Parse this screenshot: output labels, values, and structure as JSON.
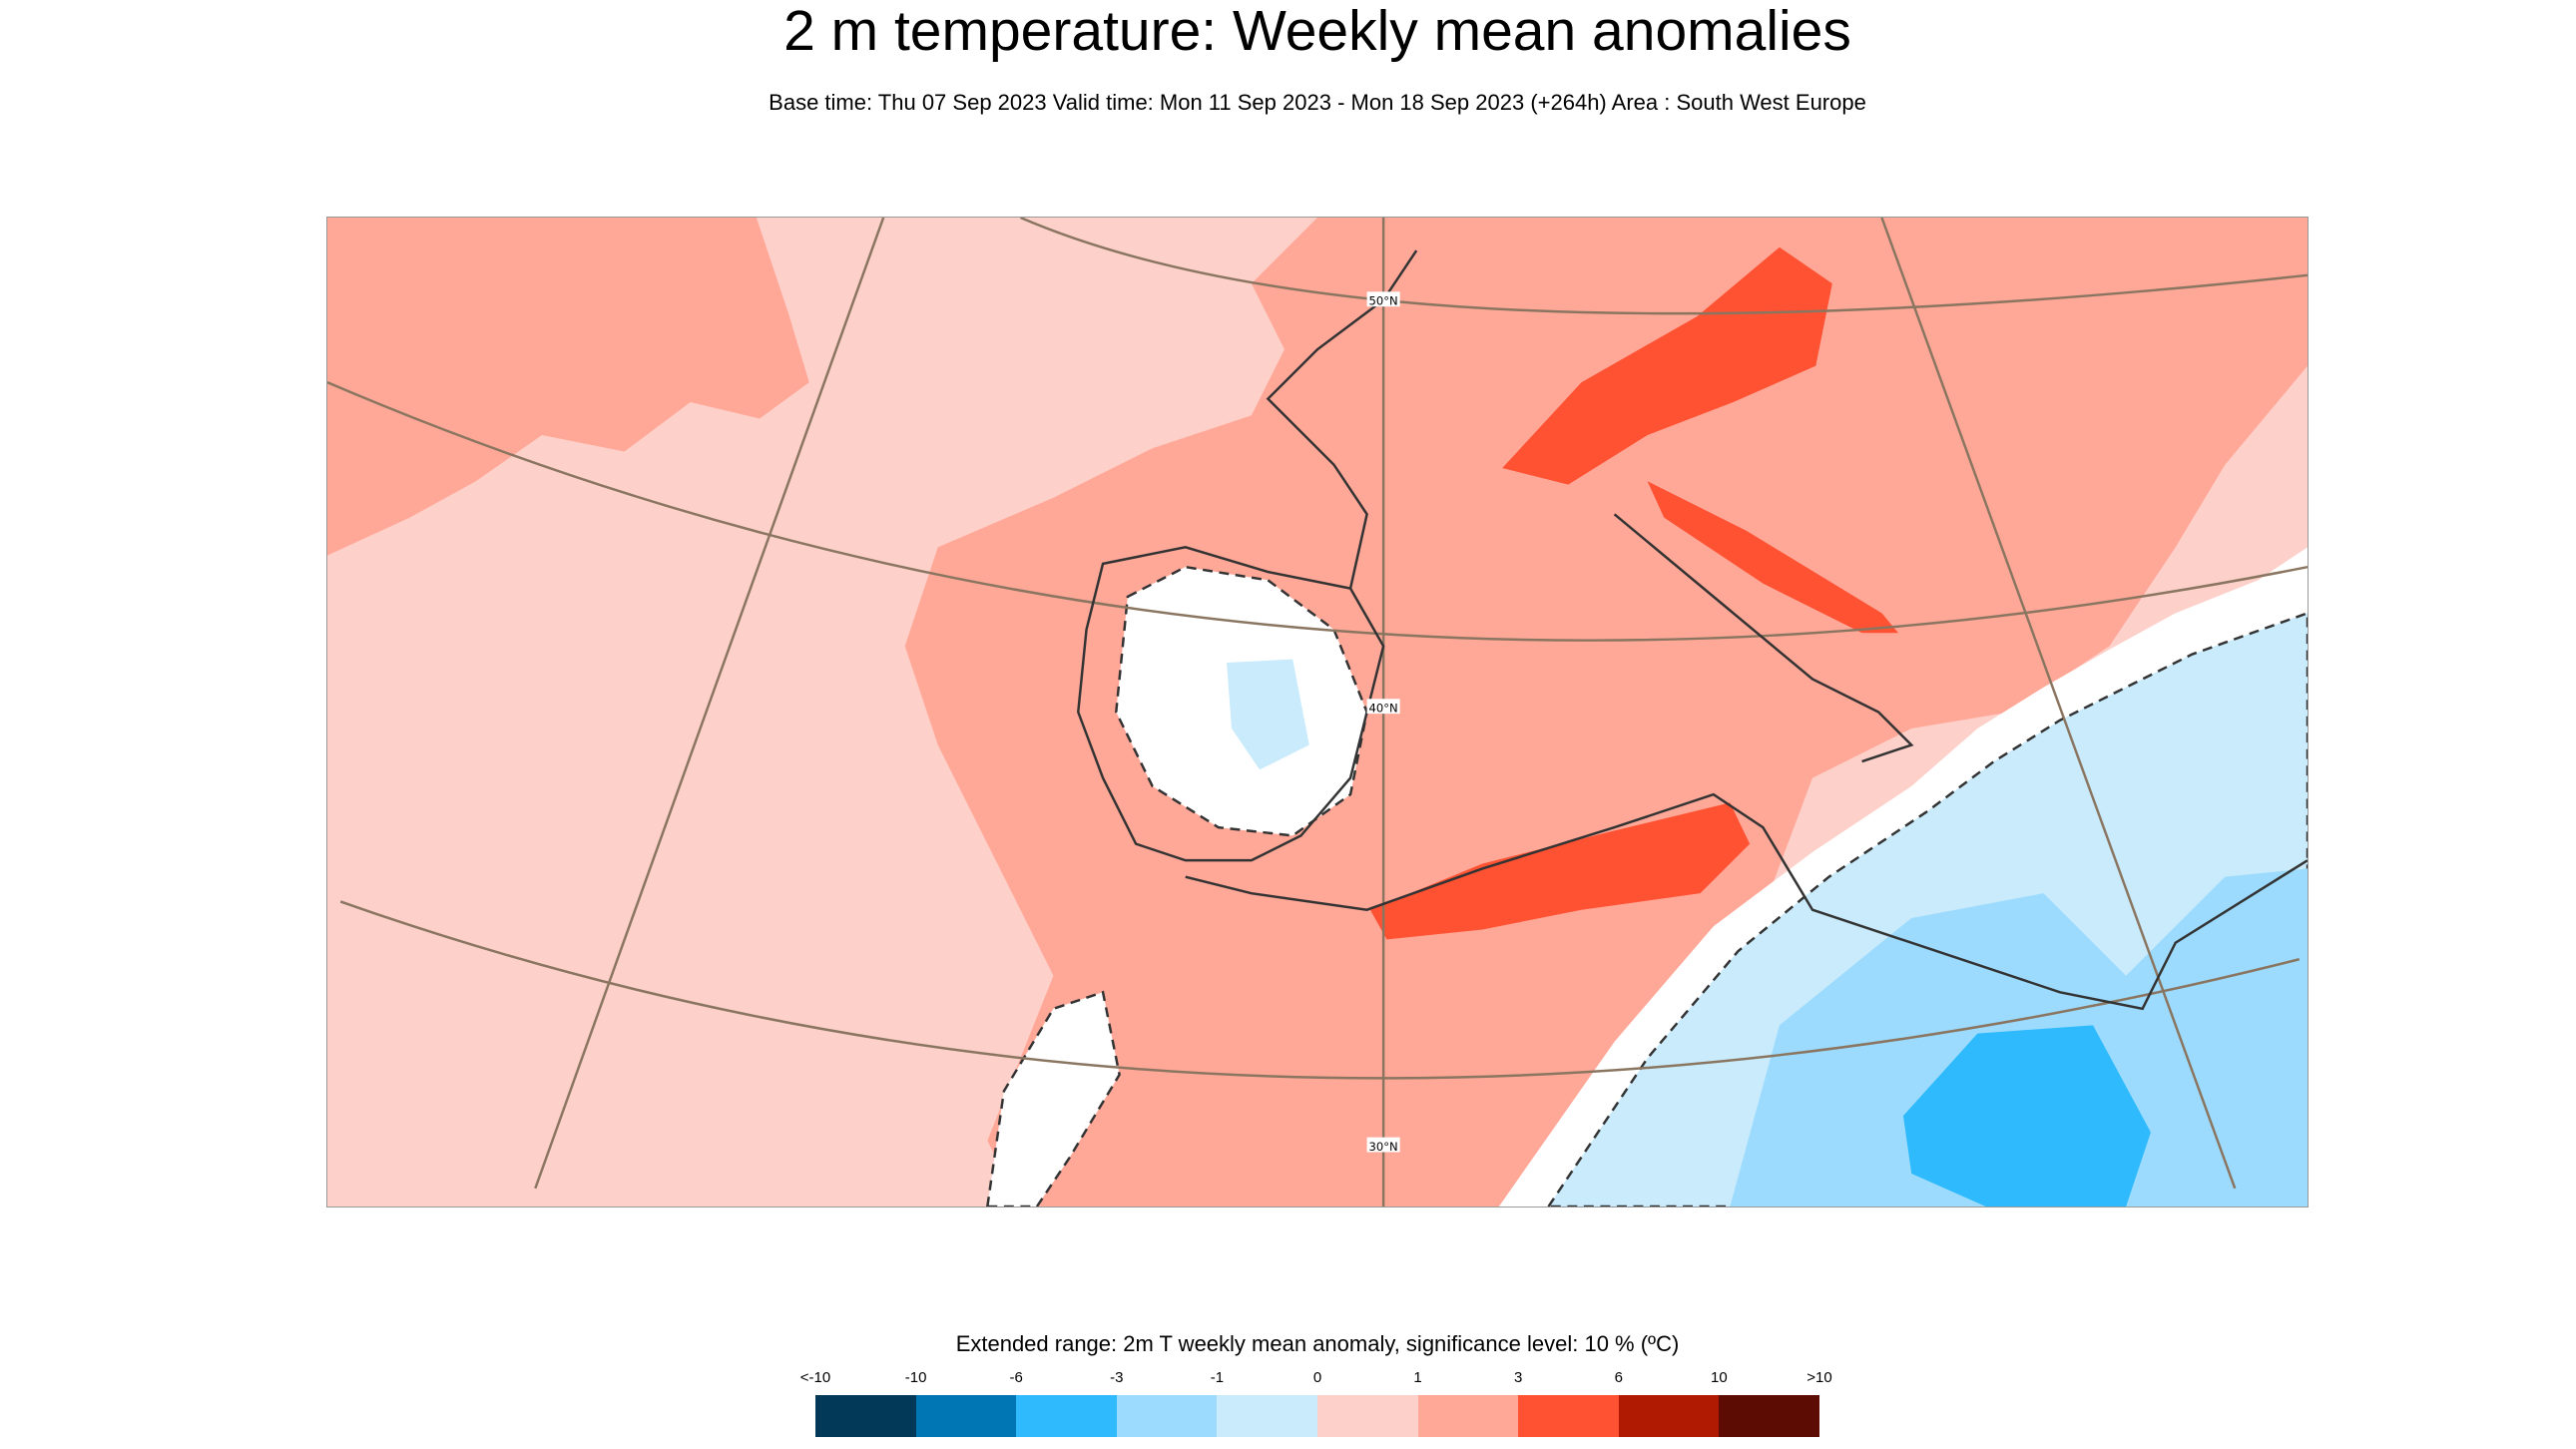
{
  "header": {
    "title": "2 m temperature: Weekly mean anomalies",
    "subtitle": "Base time: Thu 07 Sep 2023 Valid time: Mon 11 Sep 2023 - Mon 18 Sep 2023 (+264h) Area : South West Europe"
  },
  "map": {
    "area": "South West Europe",
    "latitude_labels": [
      "50°N",
      "40°N",
      "30°N"
    ],
    "significance_contour": "dashed",
    "colors": {
      "gt_1": "#fdd0ca",
      "1_3": "#ffa898",
      "3_6": "#ff5233",
      "not_significant": "#ffffff",
      "0_-1": "#c9ebfc",
      "-1_-3": "#9cdbfd",
      "-3_-6": "#2fbafe"
    }
  },
  "legend": {
    "title": "Extended range: 2m T weekly mean anomaly, significance level: 10 % (ºC)",
    "ticks": [
      "<-10",
      "-10",
      "-6",
      "-3",
      "-1",
      "0",
      "1",
      "3",
      "6",
      "10",
      ">10"
    ],
    "colors": [
      "#023858",
      "#0077b4",
      "#2fbafe",
      "#9cdbfd",
      "#c9ebfc",
      "#fdd0ca",
      "#ffa898",
      "#ff5233",
      "#b01a03",
      "#5c0c02"
    ]
  }
}
